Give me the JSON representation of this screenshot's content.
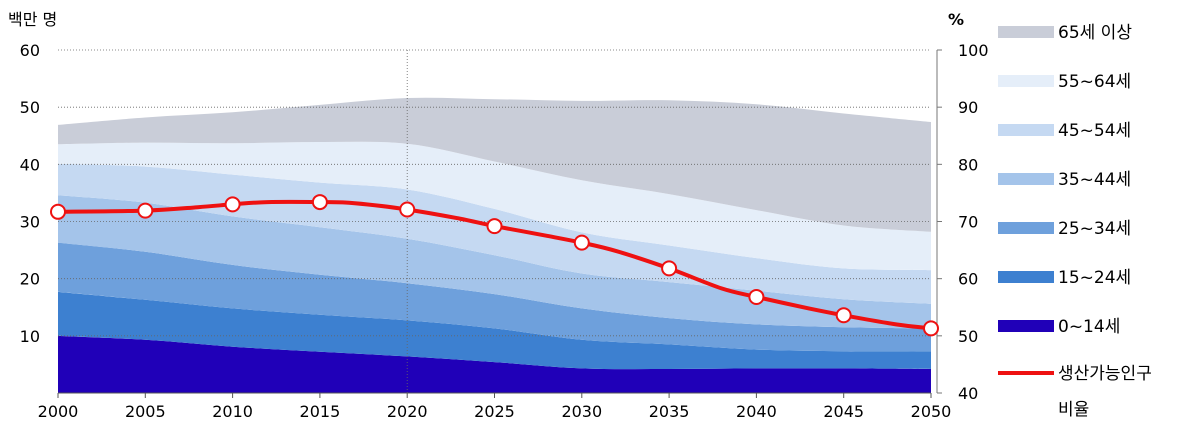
{
  "chart_data": {
    "type": "area",
    "left_axis_unit": "백만 명",
    "right_axis_unit": "%",
    "x": [
      2000,
      2005,
      2010,
      2015,
      2020,
      2025,
      2030,
      2035,
      2040,
      2045,
      2050
    ],
    "xticks": [
      "2000",
      "2005",
      "2010",
      "2015",
      "2020",
      "2025",
      "2030",
      "2035",
      "2040",
      "2045",
      "2050"
    ],
    "ylim": [
      0,
      60
    ],
    "yticks": [
      "10",
      "20",
      "30",
      "40",
      "50",
      "60"
    ],
    "y2lim": [
      40,
      100
    ],
    "y2ticks": [
      "40",
      "50",
      "60",
      "70",
      "80",
      "90",
      "100"
    ],
    "vertical_marker_x": 2020,
    "stacked_series": [
      {
        "name": "0~14세",
        "color": "#2000b8",
        "values": [
          10.0,
          9.3,
          8.1,
          7.2,
          6.4,
          5.4,
          4.3,
          4.2,
          4.3,
          4.3,
          4.2
        ]
      },
      {
        "name": "15~24세",
        "color": "#3d80d0",
        "values": [
          7.7,
          7.0,
          6.7,
          6.5,
          6.3,
          5.9,
          5.0,
          4.3,
          3.3,
          3.0,
          3.1
        ]
      },
      {
        "name": "25~34세",
        "color": "#6ea0dc",
        "values": [
          8.6,
          8.4,
          7.6,
          7.0,
          6.5,
          6.0,
          5.5,
          4.6,
          4.4,
          4.2,
          4.0
        ]
      },
      {
        "name": "35~44세",
        "color": "#a4c4ea",
        "values": [
          8.3,
          8.6,
          8.5,
          8.3,
          7.8,
          6.8,
          6.1,
          6.3,
          5.9,
          4.9,
          4.3
        ]
      },
      {
        "name": "45~54세",
        "color": "#c5d9f2",
        "values": [
          5.5,
          6.3,
          7.3,
          7.8,
          8.6,
          8.1,
          7.2,
          6.4,
          5.7,
          5.4,
          5.9
        ]
      },
      {
        "name": "55~64세",
        "color": "#e5eef9",
        "values": [
          3.4,
          4.2,
          5.5,
          7.1,
          8.0,
          8.3,
          9.1,
          9.0,
          8.4,
          7.5,
          6.7
        ]
      },
      {
        "name": "65세 이상",
        "color": "#c9cdd8",
        "values": [
          3.4,
          4.4,
          5.4,
          6.5,
          8.0,
          10.9,
          13.9,
          16.4,
          18.5,
          19.6,
          19.2
        ]
      }
    ],
    "line_series": {
      "name": "생산가능인구 비율",
      "color": "#ee1111",
      "x": [
        2000,
        2005,
        2008,
        2010,
        2012,
        2015,
        2017,
        2020,
        2023,
        2025,
        2028,
        2030,
        2032,
        2035,
        2038,
        2040,
        2043,
        2045,
        2048,
        2050
      ],
      "values": [
        71.7,
        71.9,
        72.5,
        73.0,
        73.4,
        73.4,
        73.2,
        72.1,
        70.5,
        69.2,
        67.5,
        66.3,
        64.8,
        61.8,
        58.3,
        56.8,
        54.8,
        53.6,
        52.0,
        51.3
      ],
      "marker_x": [
        2000,
        2005,
        2010,
        2015,
        2020,
        2025,
        2030,
        2035,
        2040,
        2045,
        2050
      ]
    },
    "legend": {
      "placement": "right",
      "items": [
        {
          "name": "65세 이상",
          "kind": "area"
        },
        {
          "name": "55~64세",
          "kind": "area"
        },
        {
          "name": "45~54세",
          "kind": "area"
        },
        {
          "name": "35~44세",
          "kind": "area"
        },
        {
          "name": "25~34세",
          "kind": "area"
        },
        {
          "name": "15~24세",
          "kind": "area"
        },
        {
          "name": "0~14세",
          "kind": "area"
        },
        {
          "name": "생산가능인구",
          "name_line2": "비율",
          "kind": "line"
        }
      ]
    },
    "grid": "dotted-horizontal"
  }
}
